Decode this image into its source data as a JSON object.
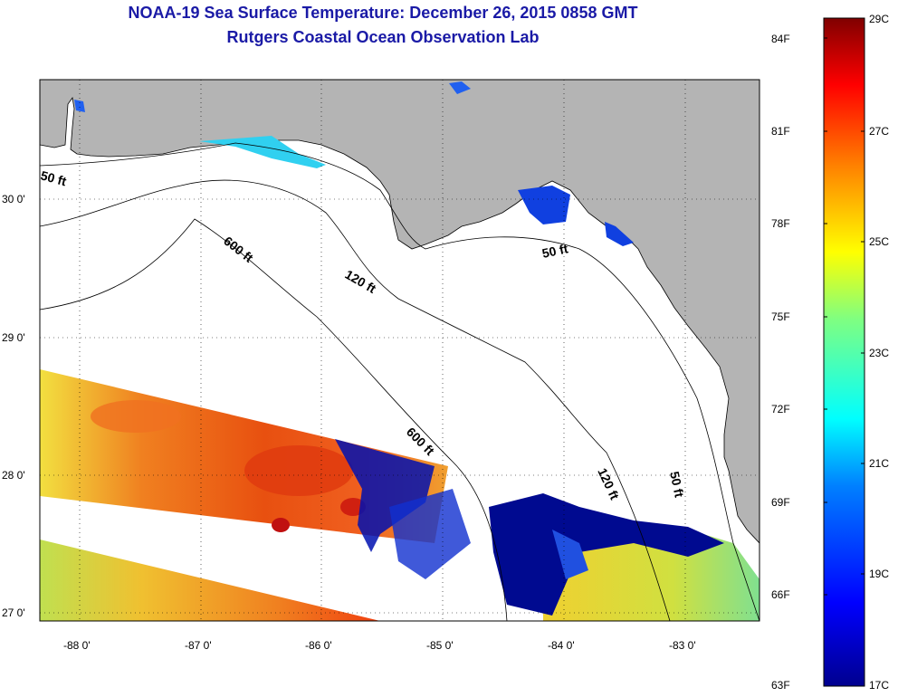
{
  "header": {
    "title": "NOAA-19 Sea Surface Temperature:  December 26, 2015 0858 GMT",
    "subtitle": "Rutgers Coastal Ocean Observation Lab"
  },
  "map": {
    "lat_labels": [
      "30 0'",
      "29 0'",
      "28 0'",
      "27 0'"
    ],
    "lon_labels": [
      "-88 0'",
      "-87 0'",
      "-86 0'",
      "-85 0'",
      "-84 0'",
      "-83 0'"
    ],
    "contour_labels": [
      "50 ft",
      "600 ft",
      "120 ft",
      "50 ft",
      "600 ft",
      "120 ft",
      "50 ft"
    ]
  },
  "colorbar": {
    "fahrenheit": [
      "84F",
      "81F",
      "78F",
      "75F",
      "72F",
      "69F",
      "66F",
      "63F"
    ],
    "celsius": [
      "29C",
      "27C",
      "25C",
      "23C",
      "21C",
      "19C",
      "17C"
    ],
    "colors": [
      "#00008f",
      "#0000ff",
      "#0080ff",
      "#00ffff",
      "#80ff80",
      "#ffff00",
      "#ff8000",
      "#ff0000",
      "#800000"
    ]
  }
}
